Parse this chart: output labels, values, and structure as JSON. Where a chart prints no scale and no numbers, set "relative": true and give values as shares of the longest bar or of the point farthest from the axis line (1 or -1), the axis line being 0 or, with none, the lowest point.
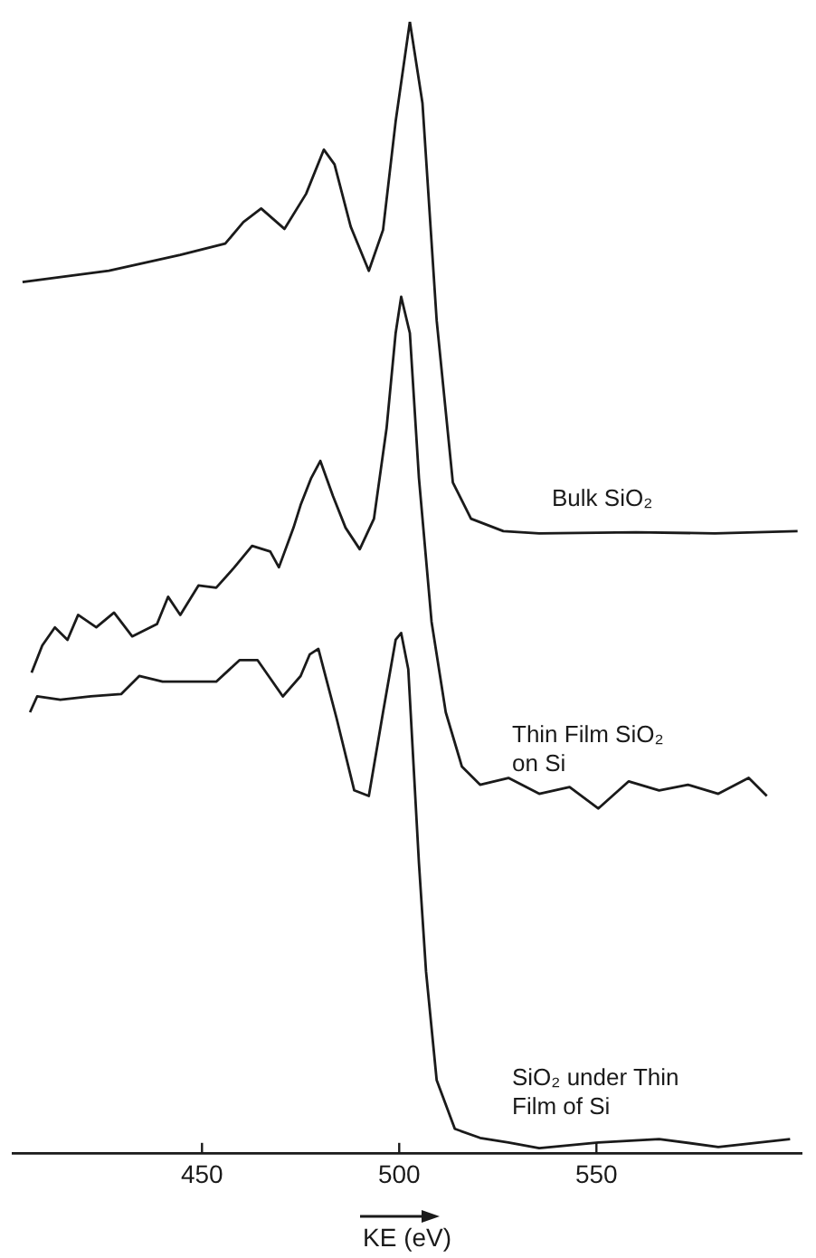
{
  "chart_data": {
    "type": "line",
    "relative": true,
    "xlabel": "KE (eV)",
    "xlim": [
      402,
      602
    ],
    "xticks": [
      450,
      500,
      550
    ],
    "marker": "none",
    "line_style": "solid",
    "legend": false,
    "series": [
      {
        "name": "Bulk SiO₂",
        "color": "#1a1a1a",
        "x": [
          404.5,
          426.4,
          444.5,
          455.9,
          460.5,
          465,
          470.9,
          476.4,
          480.9,
          483.6,
          487.7,
          492.3,
          495.9,
          499.1,
          502.7,
          505.9,
          509.5,
          513.6,
          518.2,
          526.4,
          535.5,
          560,
          580,
          601
        ],
        "values": [
          0.77,
          0.78,
          0.794,
          0.804,
          0.823,
          0.835,
          0.817,
          0.848,
          0.887,
          0.874,
          0.819,
          0.78,
          0.816,
          0.912,
          1.0,
          0.928,
          0.736,
          0.593,
          0.561,
          0.55,
          0.548,
          0.549,
          0.548,
          0.55
        ]
      },
      {
        "name": "Thin Film SiO₂ on Si",
        "color": "#1a1a1a",
        "x": [
          406.8,
          409.5,
          412.7,
          415.9,
          418.6,
          423.2,
          427.7,
          432.3,
          438.6,
          441.4,
          444.5,
          449.1,
          453.6,
          458.2,
          462.7,
          467.3,
          469.5,
          473.2,
          475,
          477.7,
          480,
          483.2,
          486.4,
          490,
          493.6,
          496.8,
          499.1,
          500.5,
          502.7,
          505,
          508.2,
          511.8,
          515.9,
          520.5,
          527.7,
          535.5,
          543.2,
          550.5,
          558.2,
          565.9,
          573.2,
          580.9,
          588.6,
          593.2
        ],
        "values": [
          0.425,
          0.449,
          0.465,
          0.454,
          0.476,
          0.465,
          0.478,
          0.457,
          0.468,
          0.492,
          0.476,
          0.502,
          0.5,
          0.518,
          0.537,
          0.532,
          0.518,
          0.553,
          0.573,
          0.597,
          0.612,
          0.581,
          0.553,
          0.534,
          0.561,
          0.641,
          0.725,
          0.757,
          0.725,
          0.597,
          0.47,
          0.39,
          0.342,
          0.326,
          0.332,
          0.318,
          0.324,
          0.305,
          0.329,
          0.321,
          0.326,
          0.318,
          0.332,
          0.316
        ]
      },
      {
        "name": "SiO₂ under Thin Film of Si",
        "color": "#1a1a1a",
        "x": [
          406.4,
          408.2,
          414.1,
          421.8,
          429.5,
          434.1,
          440,
          449.1,
          453.6,
          459.5,
          464.1,
          467.3,
          470.5,
          475,
          477.3,
          479.5,
          484.1,
          488.6,
          492.3,
          495.9,
          499.1,
          500.5,
          502.3,
          505,
          506.8,
          509.5,
          514.1,
          520.5,
          527.7,
          535.5,
          550.5,
          565.9,
          580.9,
          599.1
        ],
        "values": [
          0.39,
          0.404,
          0.401,
          0.404,
          0.406,
          0.422,
          0.417,
          0.417,
          0.417,
          0.436,
          0.436,
          0.42,
          0.404,
          0.422,
          0.441,
          0.446,
          0.385,
          0.321,
          0.316,
          0.39,
          0.454,
          0.46,
          0.428,
          0.257,
          0.161,
          0.065,
          0.022,
          0.014,
          0.01,
          0.005,
          0.01,
          0.013,
          0.006,
          0.013
        ]
      }
    ]
  }
}
